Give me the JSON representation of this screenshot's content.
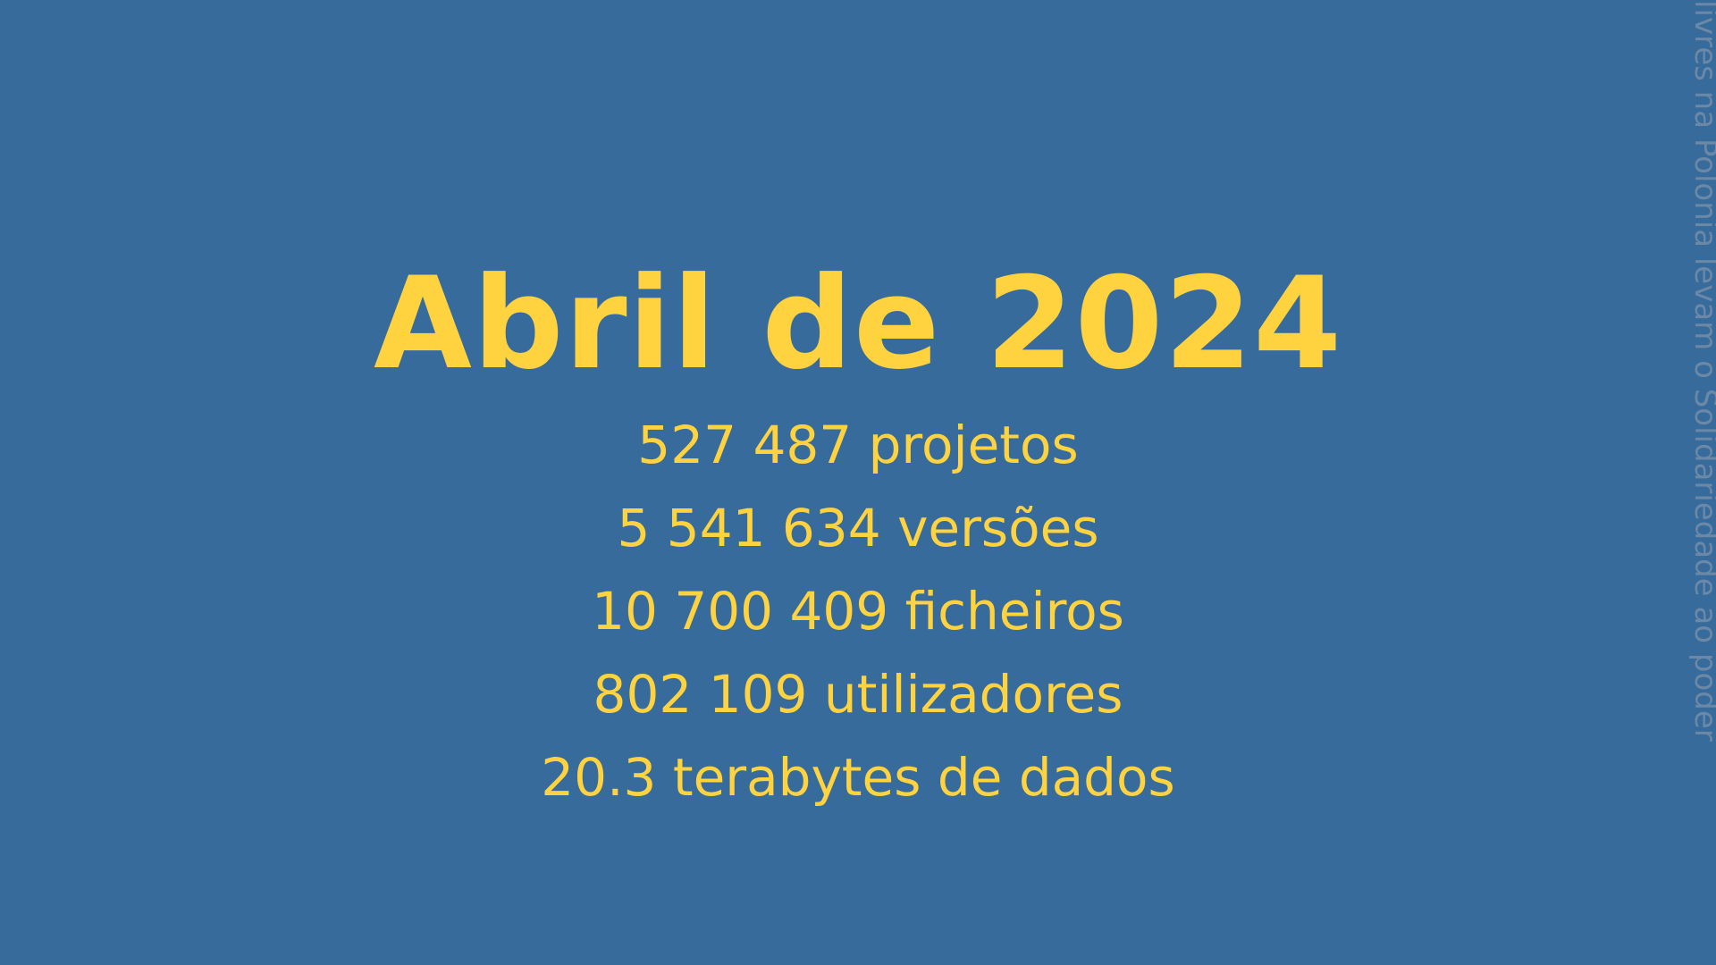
{
  "slide": {
    "title": "Abril de 2024",
    "stats": [
      "527 487 projetos",
      "5 541 634 versões",
      "10 700 409 ficheiros",
      "802 109 utilizadores",
      "20.3 terabytes de dados"
    ],
    "side_text": "livres na Polonia levam o Solidariedade ao poder"
  },
  "colors": {
    "background": "#366b9c",
    "accent": "#ffd23f",
    "side_text": "#6b88a7"
  }
}
